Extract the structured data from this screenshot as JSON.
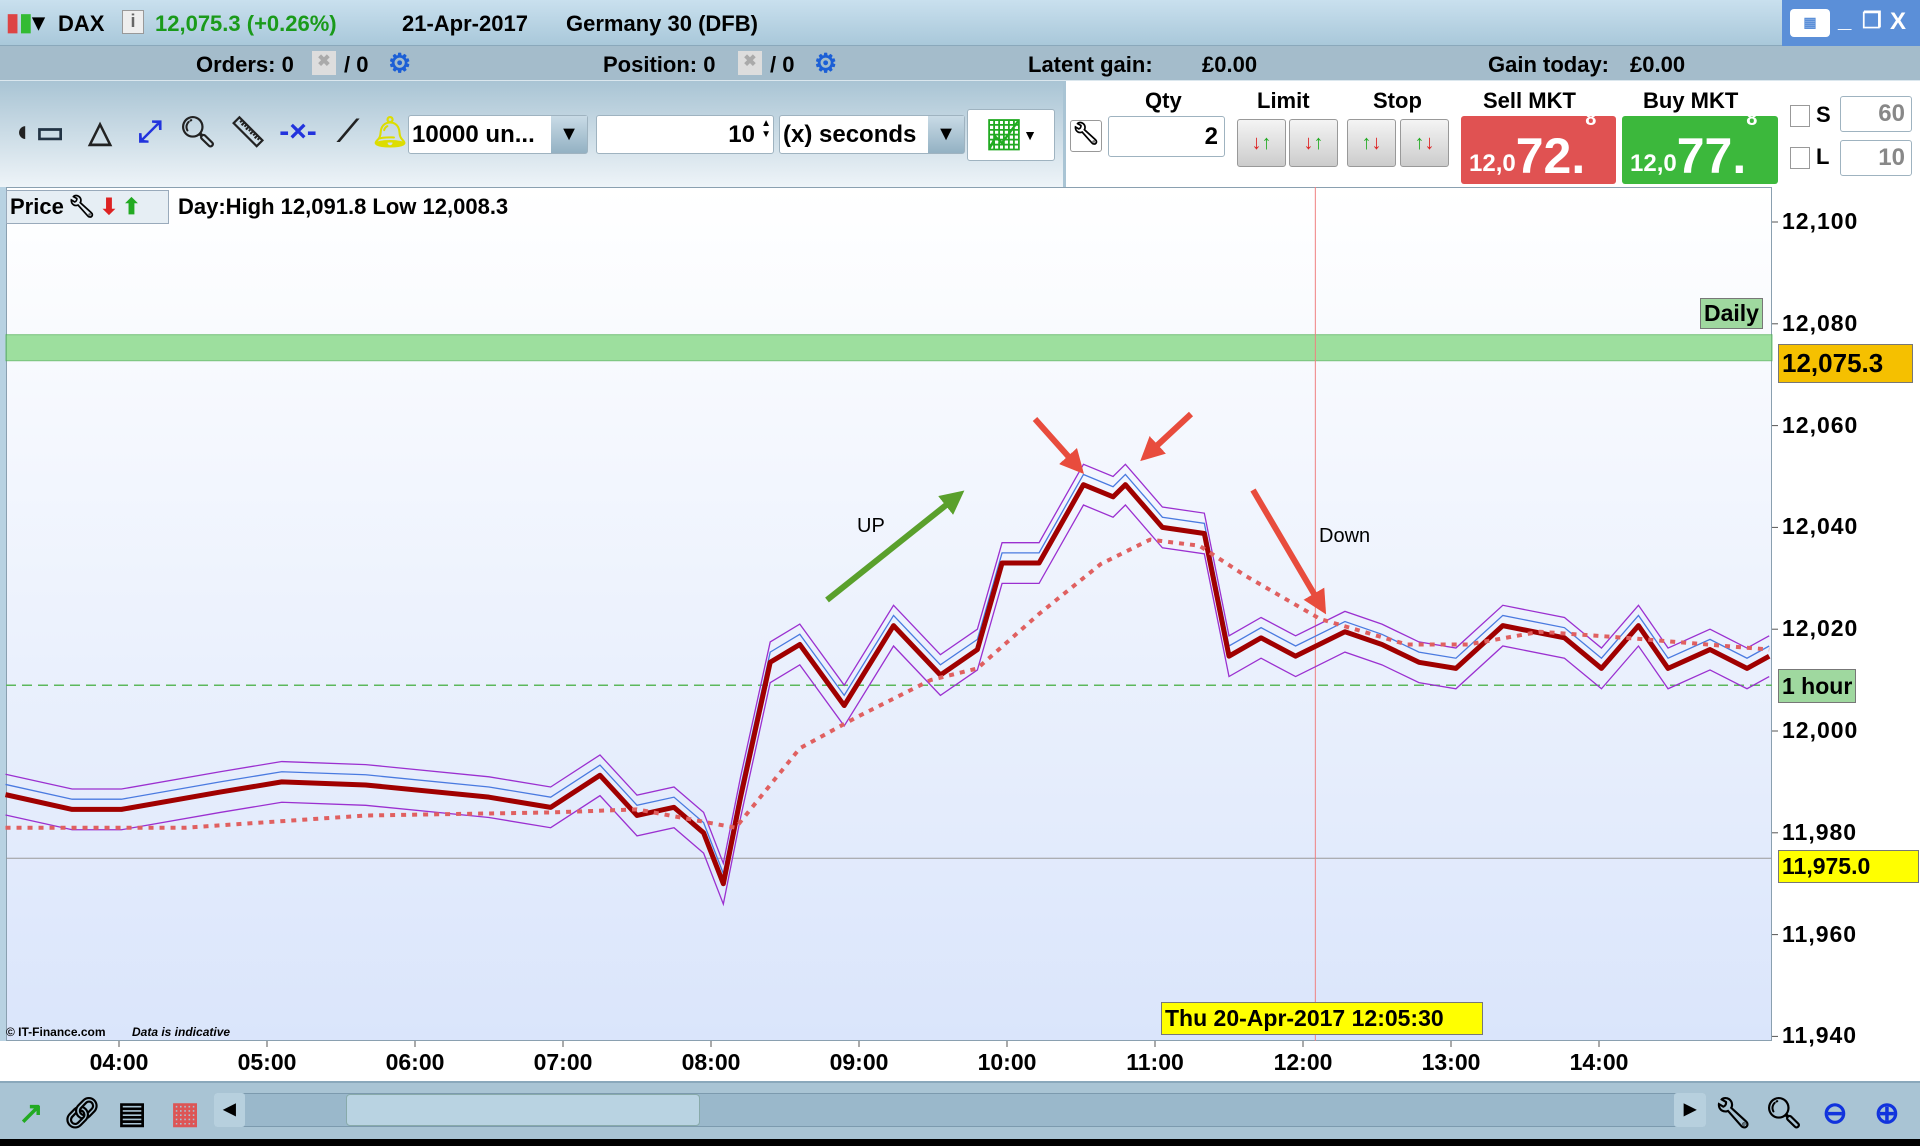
{
  "title_bar": {
    "instrument": "DAX",
    "price_change": "12,075.3 (+0.26%)",
    "date": "21-Apr-2017",
    "name": "Germany 30 (DFB)",
    "icons": [
      "candlestick-icon",
      "info-icon",
      "keyboard-icon",
      "minimize-icon",
      "restore-icon",
      "close-icon"
    ],
    "window_controls": {
      "minimize": "_",
      "restore": "❐",
      "close": "X"
    }
  },
  "status_row": {
    "orders_label": "Orders: 0",
    "orders_slash": "/ 0",
    "position_label": "Position: 0",
    "position_slash": "/ 0",
    "latent_gain_label": "Latent gain:",
    "latent_gain_value": "£0.00",
    "gain_today_label": "Gain today:",
    "gain_today_value": "£0.00"
  },
  "toolbar": {
    "units_dropdown": "10000 un...",
    "interval_value": "10",
    "interval_unit": "(x) seconds"
  },
  "order_panel": {
    "qty_label": "Qty",
    "qty_value": "2",
    "limit_label": "Limit",
    "stop_label": "Stop",
    "sell_label": "Sell MKT",
    "sell_prefix": "12,0",
    "sell_big": "72.",
    "sell_sup": "8",
    "buy_label": "Buy MKT",
    "buy_prefix": "12,0",
    "buy_big": "77.",
    "buy_sup": "8",
    "s_label": "S",
    "s_value": "60",
    "l_label": "L",
    "l_value": "10",
    "sell_color": "#e05252",
    "buy_color": "#3cb83c"
  },
  "legend": {
    "price_label": "Price",
    "day_range": "Day:High 12,091.8 Low 12,008.3"
  },
  "tags": {
    "daily": "Daily",
    "current_price": "12,075.3",
    "one_hour": "1 hour",
    "low_line": "11,975.0",
    "crosshair_time": "Thu 20-Apr-2017 12:05:30"
  },
  "copyright": "© IT-Finance.com",
  "indicative": "Data is indicative",
  "chart_data": {
    "type": "line",
    "y_ticks": [
      "12,100",
      "12,080",
      "12,060",
      "12,040",
      "12,020",
      "12,000",
      "11,980",
      "11,960",
      "11,940"
    ],
    "x_ticks": [
      "04:00",
      "05:00",
      "06:00",
      "07:00",
      "08:00",
      "09:00",
      "10:00",
      "11:00",
      "12:00",
      "13:00",
      "14:00"
    ],
    "ylim": [
      11940,
      12100
    ],
    "series": [
      {
        "color": "#a00000",
        "style": "solid",
        "points": [
          [
            "03:14",
            11987.5
          ],
          [
            "03:41",
            11984.6
          ],
          [
            "04:01",
            11984.6
          ],
          [
            "04:41",
            11988
          ],
          [
            "05:06",
            11990
          ],
          [
            "05:40",
            11989.4
          ],
          [
            "06:30",
            11987
          ],
          [
            "06:55",
            11985
          ],
          [
            "07:15",
            11991.3
          ],
          [
            "07:30",
            11983.4
          ],
          [
            "07:45",
            11985
          ],
          [
            "07:57",
            11980
          ],
          [
            "08:05",
            11970
          ],
          [
            "08:12",
            11987
          ],
          [
            "08:24",
            12013.5
          ],
          [
            "08:36",
            12017
          ],
          [
            "08:54",
            12005
          ],
          [
            "09:14",
            12020.7
          ],
          [
            "09:33",
            12011
          ],
          [
            "09:48",
            12016
          ],
          [
            "09:58",
            12033
          ],
          [
            "10:13",
            12033
          ],
          [
            "10:31",
            12048.4
          ],
          [
            "10:43",
            12046
          ],
          [
            "10:48",
            12048.4
          ],
          [
            "11:03",
            12040
          ],
          [
            "11:20",
            12038.8
          ],
          [
            "11:30",
            12014.7
          ],
          [
            "11:43",
            12018.3
          ],
          [
            "11:57",
            12014.7
          ],
          [
            "12:17",
            12019.5
          ],
          [
            "12:32",
            12017
          ],
          [
            "12:47",
            12013.5
          ],
          [
            "13:02",
            12012.3
          ],
          [
            "13:21",
            12020.7
          ],
          [
            "13:46",
            12018.3
          ],
          [
            "14:01",
            12012.3
          ],
          [
            "14:16",
            12020.7
          ],
          [
            "14:28",
            12012.3
          ],
          [
            "14:45",
            12016
          ],
          [
            "15:00",
            12012.3
          ],
          [
            "15:09",
            12014.7
          ]
        ]
      },
      {
        "color": "#e06060",
        "style": "dotted",
        "points": [
          [
            "03:14",
            11981
          ],
          [
            "04:27",
            11981
          ],
          [
            "05:40",
            11983.4
          ],
          [
            "06:55",
            11984
          ],
          [
            "07:30",
            11984.6
          ],
          [
            "08:10",
            11981
          ],
          [
            "08:36",
            11996.6
          ],
          [
            "08:59",
            12002.7
          ],
          [
            "09:29",
            12010
          ],
          [
            "09:48",
            12012.3
          ],
          [
            "10:13",
            12023
          ],
          [
            "10:38",
            12032.8
          ],
          [
            "10:58",
            12037.6
          ],
          [
            "11:18",
            12036.4
          ],
          [
            "11:37",
            12030.4
          ],
          [
            "12:07",
            12022
          ],
          [
            "12:42",
            12017
          ],
          [
            "13:07",
            12017
          ],
          [
            "13:36",
            12019.5
          ],
          [
            "14:11",
            12018.3
          ],
          [
            "15:09",
            12016
          ]
        ]
      }
    ],
    "horizontal_lines": [
      {
        "value": 12075.3,
        "color": "#7fd67f",
        "label": "Daily"
      },
      {
        "value": 12009,
        "color": "#5cb85c",
        "style": "dashed",
        "label": "1 hour"
      },
      {
        "value": 11975,
        "color": "#999999",
        "label": "11,975.0"
      }
    ],
    "crosshair_time": "12:05:30",
    "annotations": [
      {
        "text": "UP",
        "arrow_color": "#5aa02c"
      },
      {
        "text": "Down",
        "arrow_color": "#e84c3d"
      }
    ]
  }
}
